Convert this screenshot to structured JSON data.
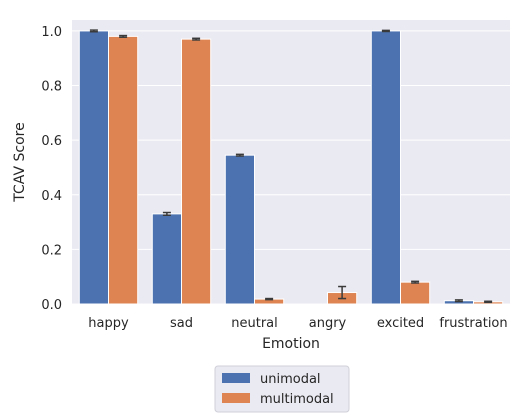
{
  "chart_data": {
    "type": "bar",
    "title": "",
    "xlabel": "Emotion",
    "ylabel": "TCAV Score",
    "categories": [
      "happy",
      "sad",
      "neutral",
      "angry",
      "excited",
      "frustration"
    ],
    "series": [
      {
        "name": "unimodal",
        "color": "#4c72b0",
        "values": [
          1.0,
          0.33,
          0.545,
          0.0,
          1.0,
          0.012
        ],
        "errors": [
          0.003,
          0.005,
          0.003,
          0.0,
          0.002,
          0.003
        ]
      },
      {
        "name": "multimodal",
        "color": "#dd8452",
        "values": [
          0.98,
          0.97,
          0.018,
          0.042,
          0.08,
          0.008
        ],
        "errors": [
          0.003,
          0.003,
          0.002,
          0.022,
          0.003,
          0.002
        ]
      }
    ],
    "ylim": [
      0,
      1.0
    ],
    "yticks": [
      "0.0",
      "0.2",
      "0.4",
      "0.6",
      "0.8",
      "1.0"
    ],
    "grid": true,
    "legend_position": "bottom-center",
    "background_color": "#eaeaf2",
    "grid_color": "#ffffff"
  }
}
